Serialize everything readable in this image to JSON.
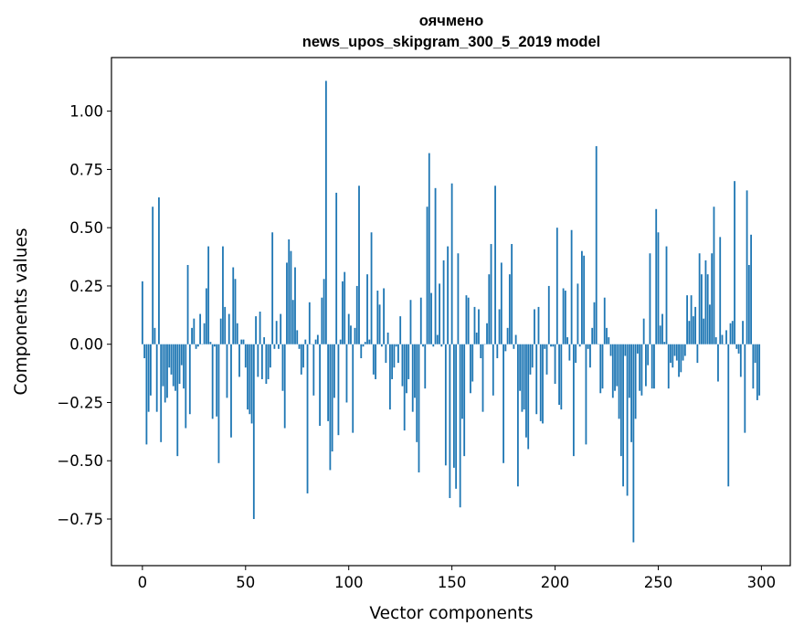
{
  "chart_data": {
    "type": "bar",
    "title_line1": "оячмено",
    "title_line2": "news_upos_skipgram_300_5_2019 model",
    "xlabel": "Vector components",
    "ylabel": "Components values",
    "xlim": [
      -15,
      314
    ],
    "ylim": [
      -0.95,
      1.23
    ],
    "xticks": [
      0,
      50,
      100,
      150,
      200,
      250,
      300
    ],
    "xtick_labels": [
      "0",
      "50",
      "100",
      "150",
      "200",
      "250",
      "300"
    ],
    "yticks": [
      -0.75,
      -0.5,
      -0.25,
      0.0,
      0.25,
      0.5,
      0.75,
      1.0
    ],
    "ytick_labels": [
      "−0.75",
      "−0.50",
      "−0.25",
      "0.00",
      "0.25",
      "0.50",
      "0.75",
      "1.00"
    ],
    "bar_color": "#1f77b4",
    "bar_width": 0.8,
    "values": [
      0.27,
      -0.06,
      -0.43,
      -0.29,
      -0.22,
      0.59,
      0.07,
      -0.29,
      0.63,
      -0.42,
      -0.18,
      -0.25,
      -0.23,
      -0.1,
      -0.13,
      -0.18,
      -0.2,
      -0.48,
      -0.17,
      -0.09,
      -0.19,
      -0.36,
      0.34,
      -0.3,
      0.07,
      0.11,
      -0.02,
      -0.01,
      0.13,
      0.0,
      0.09,
      0.24,
      0.42,
      0.01,
      -0.32,
      -0.01,
      -0.31,
      -0.51,
      0.11,
      0.42,
      0.16,
      -0.23,
      0.13,
      -0.4,
      0.33,
      0.28,
      0.09,
      -0.14,
      0.02,
      0.02,
      -0.1,
      -0.28,
      -0.3,
      -0.34,
      -0.75,
      0.12,
      -0.14,
      0.14,
      -0.15,
      0.03,
      -0.17,
      -0.15,
      -0.1,
      0.48,
      -0.02,
      0.1,
      -0.02,
      0.13,
      -0.2,
      -0.36,
      0.35,
      0.45,
      0.4,
      0.19,
      0.33,
      0.06,
      -0.02,
      -0.13,
      -0.1,
      0.02,
      -0.64,
      0.18,
      0.0,
      -0.22,
      0.02,
      0.04,
      -0.35,
      0.2,
      0.28,
      1.13,
      -0.33,
      -0.54,
      -0.46,
      -0.23,
      0.65,
      -0.39,
      0.02,
      0.27,
      0.31,
      -0.25,
      0.13,
      0.08,
      -0.38,
      0.07,
      0.25,
      0.68,
      -0.06,
      -0.01,
      0.01,
      0.3,
      0.02,
      0.48,
      -0.13,
      -0.15,
      0.23,
      0.17,
      -0.01,
      0.24,
      -0.08,
      0.05,
      -0.28,
      -0.15,
      -0.1,
      -0.01,
      -0.08,
      0.12,
      -0.18,
      -0.37,
      -0.21,
      -0.15,
      0.19,
      -0.29,
      -0.23,
      -0.42,
      -0.55,
      0.2,
      -0.01,
      -0.19,
      0.59,
      0.82,
      0.22,
      -0.01,
      0.67,
      0.04,
      0.26,
      -0.01,
      0.36,
      -0.52,
      0.42,
      -0.66,
      0.69,
      -0.53,
      -0.62,
      0.39,
      -0.7,
      -0.32,
      -0.48,
      0.21,
      0.2,
      -0.21,
      -0.16,
      0.16,
      0.05,
      0.15,
      -0.06,
      -0.29,
      0.0,
      0.09,
      0.3,
      0.43,
      -0.22,
      0.68,
      -0.06,
      0.15,
      0.35,
      -0.51,
      -0.03,
      0.07,
      0.3,
      0.43,
      -0.02,
      0.04,
      -0.61,
      -0.2,
      -0.29,
      -0.28,
      -0.4,
      -0.45,
      -0.13,
      -0.1,
      0.15,
      -0.3,
      0.16,
      -0.33,
      -0.34,
      -0.02,
      -0.13,
      0.25,
      -0.01,
      -0.01,
      -0.17,
      0.5,
      -0.26,
      -0.28,
      0.24,
      0.23,
      0.03,
      -0.07,
      0.49,
      -0.48,
      -0.08,
      0.26,
      -0.01,
      0.4,
      0.38,
      -0.43,
      -0.02,
      -0.1,
      0.07,
      0.18,
      0.85,
      0.0,
      -0.21,
      -0.19,
      0.2,
      0.07,
      0.03,
      -0.05,
      -0.23,
      -0.2,
      -0.18,
      -0.32,
      -0.48,
      -0.61,
      -0.05,
      -0.65,
      -0.23,
      -0.42,
      -0.85,
      -0.32,
      -0.04,
      -0.2,
      -0.22,
      0.11,
      -0.18,
      -0.09,
      0.39,
      -0.19,
      -0.19,
      0.58,
      0.48,
      0.08,
      0.13,
      0.01,
      0.42,
      -0.19,
      -0.08,
      -0.1,
      -0.05,
      -0.07,
      -0.14,
      -0.12,
      -0.07,
      -0.05,
      0.21,
      0.1,
      0.21,
      0.12,
      0.16,
      -0.08,
      0.39,
      0.3,
      0.11,
      0.36,
      0.3,
      0.17,
      0.39,
      0.59,
      0.03,
      -0.16,
      0.46,
      0.04,
      0.0,
      0.06,
      -0.61,
      0.09,
      0.1,
      0.7,
      -0.02,
      -0.04,
      -0.14,
      0.1,
      -0.38,
      0.66,
      0.34,
      0.47,
      -0.19,
      -0.08,
      -0.24,
      -0.22
    ]
  }
}
